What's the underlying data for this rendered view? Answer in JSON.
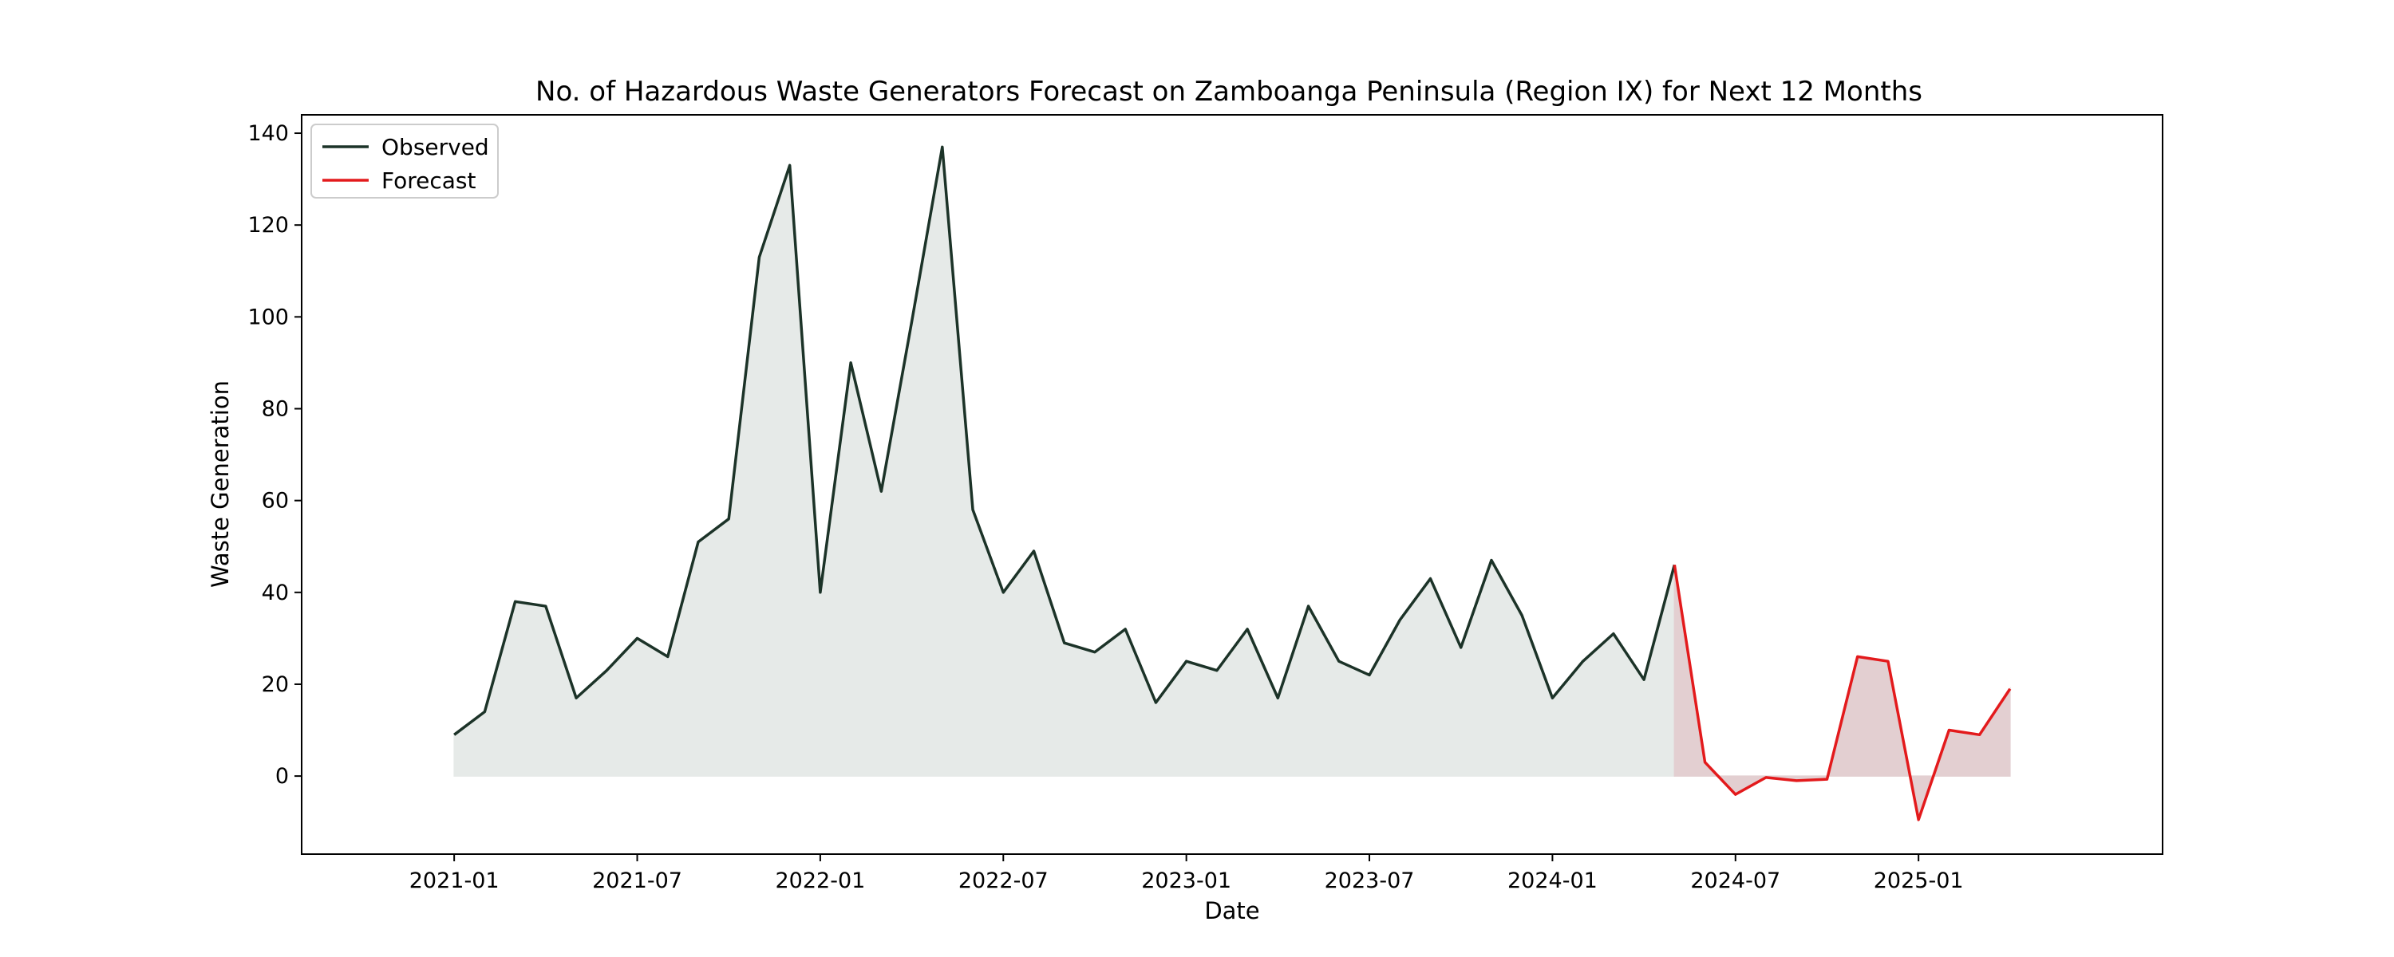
{
  "chart_data": {
    "type": "line",
    "title": "No. of Hazardous Waste Generators Forecast on Zamboanga Peninsula (Region IX) for Next 12 Months",
    "xlabel": "Date",
    "ylabel": "Waste Generation",
    "x_type": "date",
    "xlim": [
      "2020-08",
      "2025-09"
    ],
    "ylim": [
      -17,
      144
    ],
    "y_ticks": [
      0,
      20,
      40,
      60,
      80,
      100,
      120,
      140
    ],
    "x_ticks": [
      "2021-01",
      "2021-07",
      "2022-01",
      "2022-07",
      "2023-01",
      "2023-07",
      "2024-01",
      "2024-07",
      "2025-01"
    ],
    "grid": false,
    "legend": {
      "position": "top-left",
      "entries": [
        "Observed",
        "Forecast"
      ]
    },
    "colors": {
      "observed": "#1c3328",
      "observed_fill": "#e6eae8",
      "forecast": "#e31a1c",
      "forecast_fill": "#e3cfd1"
    },
    "series": [
      {
        "name": "Observed",
        "x": [
          "2021-01",
          "2021-02",
          "2021-03",
          "2021-04",
          "2021-05",
          "2021-06",
          "2021-07",
          "2021-08",
          "2021-09",
          "2021-10",
          "2021-11",
          "2021-12",
          "2022-01",
          "2022-02",
          "2022-03",
          "2022-04",
          "2022-05",
          "2022-06",
          "2022-07",
          "2022-08",
          "2022-09",
          "2022-10",
          "2022-11",
          "2022-12",
          "2023-01",
          "2023-02",
          "2023-03",
          "2023-04",
          "2023-05",
          "2023-06",
          "2023-07",
          "2023-08",
          "2023-09",
          "2023-10",
          "2023-11",
          "2023-12",
          "2024-01",
          "2024-02",
          "2024-03",
          "2024-04",
          "2024-05"
        ],
        "values": [
          9,
          14,
          38,
          37,
          17,
          23,
          30,
          26,
          51,
          56,
          113,
          133,
          40,
          90,
          62,
          99,
          137,
          58,
          40,
          49,
          29,
          27,
          32,
          16,
          25,
          23,
          32,
          17,
          37,
          25,
          22,
          34,
          43,
          28,
          47,
          35,
          17,
          25,
          31,
          21,
          46
        ]
      },
      {
        "name": "Forecast",
        "x": [
          "2024-05",
          "2024-06",
          "2024-07",
          "2024-08",
          "2024-09",
          "2024-10",
          "2024-11",
          "2024-12",
          "2025-01",
          "2025-02",
          "2025-03",
          "2025-04"
        ],
        "values": [
          46,
          3,
          -4,
          -0.3,
          -1,
          -0.7,
          26,
          25,
          -9.5,
          10,
          9,
          19
        ]
      }
    ]
  }
}
